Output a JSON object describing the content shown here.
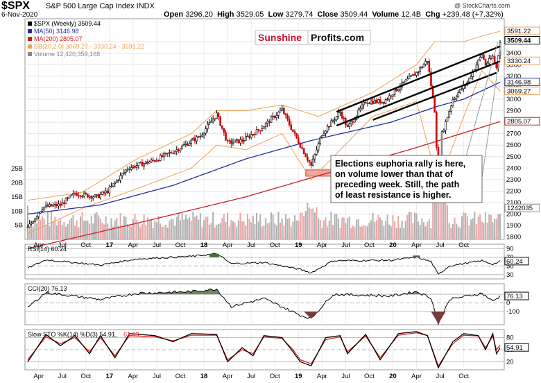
{
  "header": {
    "ticker": "$SPX",
    "description": "S&P 500 Large Cap Index  INDX",
    "credit": "@ StockCharts.com",
    "date": "6-Nov-2020",
    "open_label": "Open",
    "open": "3296.20",
    "high_label": "High",
    "high": "3529.05",
    "low_label": "Low",
    "low": "3279.74",
    "close_label": "Close",
    "close": "3509.44",
    "volume_label": "Volume",
    "volume": "12.4B",
    "chg_label": "Chg",
    "chg": "+239.48 (+7.32%)"
  },
  "watermark": {
    "part1": "Sunshine",
    "part2": "Profits.com"
  },
  "annotation": {
    "lines": [
      "Elections euphoria rally is here,",
      "on volume lower than that of",
      "preceding week. Still, the path",
      "of least resistance is higher."
    ]
  },
  "colors": {
    "price": "#000000",
    "ma50": "#1f2f9e",
    "ma200": "#cc2020",
    "bb": "#f0a050",
    "volume": "#b0b0b0",
    "volume_down": "#e8a6a6",
    "indicator_fill": "#4c6b3c",
    "indicator_fill_neg": "#7a3b3b",
    "support_zone": "#f08080",
    "stoch_k": "#000000",
    "stoch_d": "#dd2222",
    "watermark_red": "#c8102e"
  },
  "chart_data": [
    {
      "type": "candlestick",
      "title": "$SPX (Weekly)",
      "title_value": "3509.44",
      "legend": [
        {
          "name": "$SPX (Weekly)",
          "value": "3509.44",
          "color": "#000000"
        },
        {
          "name": "MA(50)",
          "value": "3146.98",
          "color": "#1f2f9e"
        },
        {
          "name": "MA(200)",
          "value": "2805.07",
          "color": "#cc2020"
        },
        {
          "name": "BB(20,2.0)",
          "value": "3069.27 - 3330.24 - 3591.22",
          "color": "#f0a050"
        },
        {
          "name": "Volume",
          "value": "12,420,359,168",
          "color": "#888888"
        }
      ],
      "y_ticks_right": [
        1800,
        1900,
        2000,
        2100,
        2200,
        2300,
        2400,
        2500,
        2600,
        2700,
        2800,
        2900,
        3000,
        3100,
        3200,
        3300,
        3400,
        3500
      ],
      "y_tick_labels_right": [
        "1800",
        "1900",
        "2000",
        "2100",
        "2200",
        "2300",
        "2400",
        "2500",
        "2600",
        "2700",
        "2800",
        "2900",
        "3000",
        "3100",
        "3200",
        "3300",
        "3400",
        "3500"
      ],
      "right_labels": [
        {
          "value": "3591.22",
          "text": "3591.22"
        },
        {
          "value": "3509.44",
          "text": "3509.44"
        },
        {
          "value": "3330.24",
          "text": "3330.24"
        },
        {
          "value": "3146.98",
          "text": "3146.98"
        },
        {
          "value": "3069.27",
          "text": "3069.27"
        },
        {
          "value": "2805.07",
          "text": "2805.07"
        },
        {
          "value": "1242035",
          "text": "1242035"
        }
      ],
      "volume_axis_labels": [
        "5B",
        "10B",
        "15B",
        "20B",
        "25B"
      ],
      "volume_axis_values": [
        5,
        10,
        15,
        20,
        25
      ],
      "ylim": [
        1780,
        3700
      ],
      "x_labels": [
        "Apr",
        "Jul",
        "Oct",
        "17",
        "Apr",
        "Jul",
        "Oct",
        "18",
        "Apr",
        "Jul",
        "Oct",
        "19",
        "Apr",
        "Jul",
        "Oct",
        "20",
        "Apr",
        "Jul",
        "Oct"
      ],
      "x_label_bold": [
        false,
        false,
        false,
        true,
        false,
        false,
        false,
        true,
        false,
        false,
        false,
        true,
        false,
        false,
        false,
        true,
        false,
        false,
        false
      ],
      "close_keypoints": [
        [
          0,
          1880
        ],
        [
          8,
          2060
        ],
        [
          18,
          2080
        ],
        [
          26,
          2180
        ],
        [
          38,
          2150
        ],
        [
          44,
          2200
        ],
        [
          55,
          2400
        ],
        [
          70,
          2470
        ],
        [
          82,
          2560
        ],
        [
          95,
          2680
        ],
        [
          104,
          2870
        ],
        [
          110,
          2620
        ],
        [
          118,
          2640
        ],
        [
          128,
          2740
        ],
        [
          140,
          2910
        ],
        [
          145,
          2750
        ],
        [
          150,
          2600
        ],
        [
          156,
          2420
        ],
        [
          162,
          2700
        ],
        [
          172,
          2890
        ],
        [
          176,
          2750
        ],
        [
          186,
          2980
        ],
        [
          196,
          2980
        ],
        [
          206,
          3130
        ],
        [
          214,
          3230
        ],
        [
          220,
          3340
        ],
        [
          224,
          2900
        ],
        [
          226,
          2300
        ],
        [
          228,
          2700
        ],
        [
          234,
          3000
        ],
        [
          242,
          3150
        ],
        [
          250,
          3390
        ],
        [
          252,
          3300
        ],
        [
          256,
          3370
        ],
        [
          258,
          3270
        ],
        [
          260,
          3509
        ]
      ],
      "ma50_keypoints": [
        [
          0,
          2000
        ],
        [
          40,
          2080
        ],
        [
          80,
          2250
        ],
        [
          120,
          2480
        ],
        [
          156,
          2640
        ],
        [
          200,
          2800
        ],
        [
          226,
          2940
        ],
        [
          240,
          3000
        ],
        [
          260,
          3147
        ]
      ],
      "ma200_keypoints": [
        [
          0,
          1700
        ],
        [
          60,
          1920
        ],
        [
          120,
          2150
        ],
        [
          170,
          2380
        ],
        [
          210,
          2560
        ],
        [
          260,
          2805
        ]
      ],
      "bb_upper_keypoints": [
        [
          0,
          2120
        ],
        [
          30,
          2190
        ],
        [
          60,
          2480
        ],
        [
          90,
          2700
        ],
        [
          104,
          2900
        ],
        [
          120,
          2900
        ],
        [
          140,
          2950
        ],
        [
          160,
          2850
        ],
        [
          190,
          3060
        ],
        [
          214,
          3300
        ],
        [
          224,
          3500
        ],
        [
          240,
          3500
        ],
        [
          250,
          3550
        ],
        [
          260,
          3591
        ]
      ],
      "bb_lower_keypoints": [
        [
          0,
          1830
        ],
        [
          30,
          2050
        ],
        [
          60,
          2220
        ],
        [
          90,
          2400
        ],
        [
          104,
          2600
        ],
        [
          120,
          2560
        ],
        [
          140,
          2700
        ],
        [
          156,
          2300
        ],
        [
          190,
          2850
        ],
        [
          214,
          2980
        ],
        [
          226,
          2250
        ],
        [
          240,
          2850
        ],
        [
          250,
          3250
        ],
        [
          260,
          3069
        ]
      ],
      "trend_lines": [
        {
          "from": [
            170,
            2890
          ],
          "to": [
            260,
            3460
          ]
        },
        {
          "from": [
            170,
            2770
          ],
          "to": [
            260,
            3330
          ]
        },
        {
          "from": [
            190,
            2820
          ],
          "to": [
            258,
            3230
          ]
        }
      ],
      "support_zone": {
        "x_from": 153,
        "x_to": 234,
        "y_from": 2330,
        "y_to": 2385
      }
    },
    {
      "type": "line",
      "title": "RSI(14)",
      "title_value": "60.24",
      "y_ticks": [
        30,
        50,
        70,
        90
      ],
      "y_tick_labels": [
        "30",
        "50",
        "70",
        "90"
      ],
      "current_label": "60.24",
      "ylim": [
        20,
        100
      ],
      "keypoints": [
        [
          0,
          45
        ],
        [
          10,
          64
        ],
        [
          40,
          52
        ],
        [
          60,
          66
        ],
        [
          90,
          72
        ],
        [
          104,
          78
        ],
        [
          112,
          55
        ],
        [
          130,
          58
        ],
        [
          150,
          42
        ],
        [
          156,
          34
        ],
        [
          168,
          62
        ],
        [
          200,
          63
        ],
        [
          214,
          70
        ],
        [
          222,
          60
        ],
        [
          226,
          30
        ],
        [
          232,
          50
        ],
        [
          250,
          62
        ],
        [
          256,
          54
        ],
        [
          260,
          60.24
        ]
      ]
    },
    {
      "type": "line",
      "title": "CCI(20)",
      "title_value": "76.13",
      "y_ticks": [
        -100,
        0,
        100
      ],
      "y_tick_labels": [
        "-100",
        "0",
        "100"
      ],
      "current_label": "76.13",
      "ylim": [
        -250,
        220
      ],
      "keypoints": [
        [
          0,
          -50
        ],
        [
          10,
          120
        ],
        [
          40,
          40
        ],
        [
          60,
          110
        ],
        [
          90,
          130
        ],
        [
          104,
          160
        ],
        [
          112,
          -40
        ],
        [
          130,
          50
        ],
        [
          150,
          -140
        ],
        [
          156,
          -180
        ],
        [
          168,
          100
        ],
        [
          200,
          80
        ],
        [
          214,
          130
        ],
        [
          222,
          60
        ],
        [
          226,
          -240
        ],
        [
          232,
          40
        ],
        [
          250,
          110
        ],
        [
          256,
          20
        ],
        [
          260,
          76.13
        ]
      ]
    },
    {
      "type": "line",
      "title": "Slow STO %K(14) %D(3)",
      "k_value": "54.91",
      "d_value": "61.09",
      "y_ticks": [
        20,
        50,
        80
      ],
      "y_tick_labels": [
        "20",
        "50",
        "80"
      ],
      "current_label": "54.91",
      "ylim": [
        0,
        100
      ],
      "k_keypoints": [
        [
          0,
          20
        ],
        [
          10,
          88
        ],
        [
          18,
          60
        ],
        [
          26,
          85
        ],
        [
          34,
          40
        ],
        [
          40,
          85
        ],
        [
          48,
          30
        ],
        [
          56,
          90
        ],
        [
          70,
          85
        ],
        [
          80,
          70
        ],
        [
          90,
          90
        ],
        [
          104,
          88
        ],
        [
          110,
          20
        ],
        [
          118,
          55
        ],
        [
          124,
          35
        ],
        [
          130,
          85
        ],
        [
          140,
          80
        ],
        [
          146,
          45
        ],
        [
          150,
          20
        ],
        [
          156,
          10
        ],
        [
          164,
          80
        ],
        [
          172,
          85
        ],
        [
          176,
          40
        ],
        [
          186,
          88
        ],
        [
          194,
          25
        ],
        [
          204,
          90
        ],
        [
          214,
          95
        ],
        [
          220,
          85
        ],
        [
          226,
          5
        ],
        [
          234,
          70
        ],
        [
          240,
          90
        ],
        [
          248,
          85
        ],
        [
          252,
          50
        ],
        [
          256,
          90
        ],
        [
          258,
          40
        ],
        [
          260,
          54.91
        ]
      ],
      "d_keypoints": [
        [
          0,
          25
        ],
        [
          10,
          82
        ],
        [
          18,
          65
        ],
        [
          26,
          80
        ],
        [
          34,
          45
        ],
        [
          40,
          80
        ],
        [
          48,
          35
        ],
        [
          56,
          85
        ],
        [
          70,
          82
        ],
        [
          80,
          72
        ],
        [
          90,
          86
        ],
        [
          104,
          86
        ],
        [
          110,
          25
        ],
        [
          118,
          50
        ],
        [
          124,
          40
        ],
        [
          130,
          82
        ],
        [
          140,
          78
        ],
        [
          146,
          50
        ],
        [
          150,
          25
        ],
        [
          156,
          15
        ],
        [
          164,
          75
        ],
        [
          172,
          82
        ],
        [
          176,
          45
        ],
        [
          186,
          84
        ],
        [
          194,
          30
        ],
        [
          204,
          86
        ],
        [
          214,
          92
        ],
        [
          220,
          85
        ],
        [
          226,
          10
        ],
        [
          234,
          65
        ],
        [
          240,
          86
        ],
        [
          248,
          84
        ],
        [
          252,
          55
        ],
        [
          256,
          84
        ],
        [
          258,
          50
        ],
        [
          260,
          61.09
        ]
      ]
    }
  ]
}
